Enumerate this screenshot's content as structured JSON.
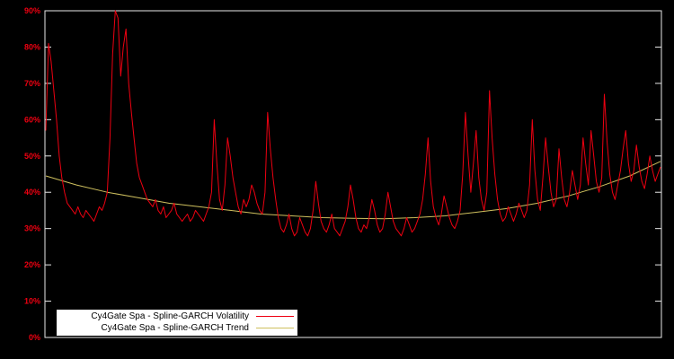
{
  "chart_data": {
    "type": "line",
    "title": "",
    "xlabel": "",
    "ylabel": "",
    "ylim": [
      0,
      90
    ],
    "grid": false,
    "legend_position": "bottom-left",
    "ytick_labels": [
      "0%",
      "10%",
      "20%",
      "30%",
      "40%",
      "50%",
      "60%",
      "70%",
      "80%",
      "90%"
    ],
    "ytick_values": [
      0,
      10,
      20,
      30,
      40,
      50,
      60,
      70,
      80,
      90
    ],
    "series": [
      {
        "name": "Cy4Gate Spa - Spline-GARCH Volatility",
        "color": "#ee0011",
        "values": [
          57,
          81,
          76,
          68,
          60,
          50,
          44,
          40,
          37,
          36,
          35,
          34,
          36,
          34,
          33,
          35,
          34,
          33,
          32,
          34,
          36,
          35,
          37,
          40,
          55,
          78,
          90,
          88,
          72,
          80,
          85,
          70,
          62,
          55,
          48,
          44,
          42,
          40,
          38,
          37,
          36,
          38,
          35,
          34,
          36,
          33,
          34,
          35,
          37,
          34,
          33,
          32,
          33,
          34,
          32,
          33,
          35,
          34,
          33,
          32,
          34,
          36,
          40,
          60,
          48,
          38,
          35,
          42,
          55,
          50,
          44,
          40,
          36,
          34,
          38,
          36,
          38,
          42,
          40,
          37,
          35,
          34,
          40,
          62,
          52,
          44,
          38,
          33,
          30,
          29,
          31,
          34,
          30,
          28,
          29,
          33,
          31,
          29,
          28,
          30,
          35,
          43,
          37,
          32,
          30,
          29,
          31,
          34,
          30,
          29,
          28,
          30,
          32,
          36,
          42,
          38,
          33,
          30,
          29,
          31,
          30,
          33,
          38,
          35,
          31,
          29,
          30,
          34,
          40,
          36,
          32,
          30,
          29,
          28,
          30,
          33,
          31,
          29,
          30,
          32,
          34,
          38,
          45,
          55,
          43,
          36,
          33,
          31,
          34,
          39,
          36,
          33,
          31,
          30,
          32,
          35,
          45,
          62,
          50,
          40,
          48,
          57,
          44,
          38,
          35,
          40,
          68,
          55,
          45,
          38,
          34,
          32,
          33,
          36,
          34,
          32,
          34,
          37,
          35,
          33,
          35,
          42,
          60,
          46,
          38,
          35,
          44,
          55,
          47,
          40,
          36,
          38,
          52,
          44,
          38,
          36,
          40,
          46,
          42,
          38,
          42,
          55,
          48,
          42,
          57,
          50,
          43,
          40,
          44,
          67,
          54,
          45,
          40,
          38,
          42,
          46,
          52,
          57,
          48,
          43,
          46,
          53,
          47,
          43,
          41,
          45,
          50,
          46,
          43,
          45,
          47
        ]
      },
      {
        "name": "Cy4Gate Spa - Spline-GARCH Trend",
        "color": "#cfc05e",
        "values": [
          44.5,
          42,
          40,
          38.5,
          37,
          36,
          35,
          34,
          33.5,
          33,
          32.8,
          32.7,
          33,
          33.5,
          34.5,
          35.5,
          37,
          39,
          41.5,
          44.5,
          48.5
        ]
      }
    ]
  },
  "legend": {
    "volatility_label": "Cy4Gate Spa - Spline-GARCH Volatility",
    "trend_label": "Cy4Gate Spa - Spline-GARCH Trend"
  },
  "colors": {
    "background": "#000000",
    "frame": "#e8e8e8",
    "tick_label": "#ee0011",
    "volatility": "#ee0011",
    "trend": "#cfc05e"
  }
}
